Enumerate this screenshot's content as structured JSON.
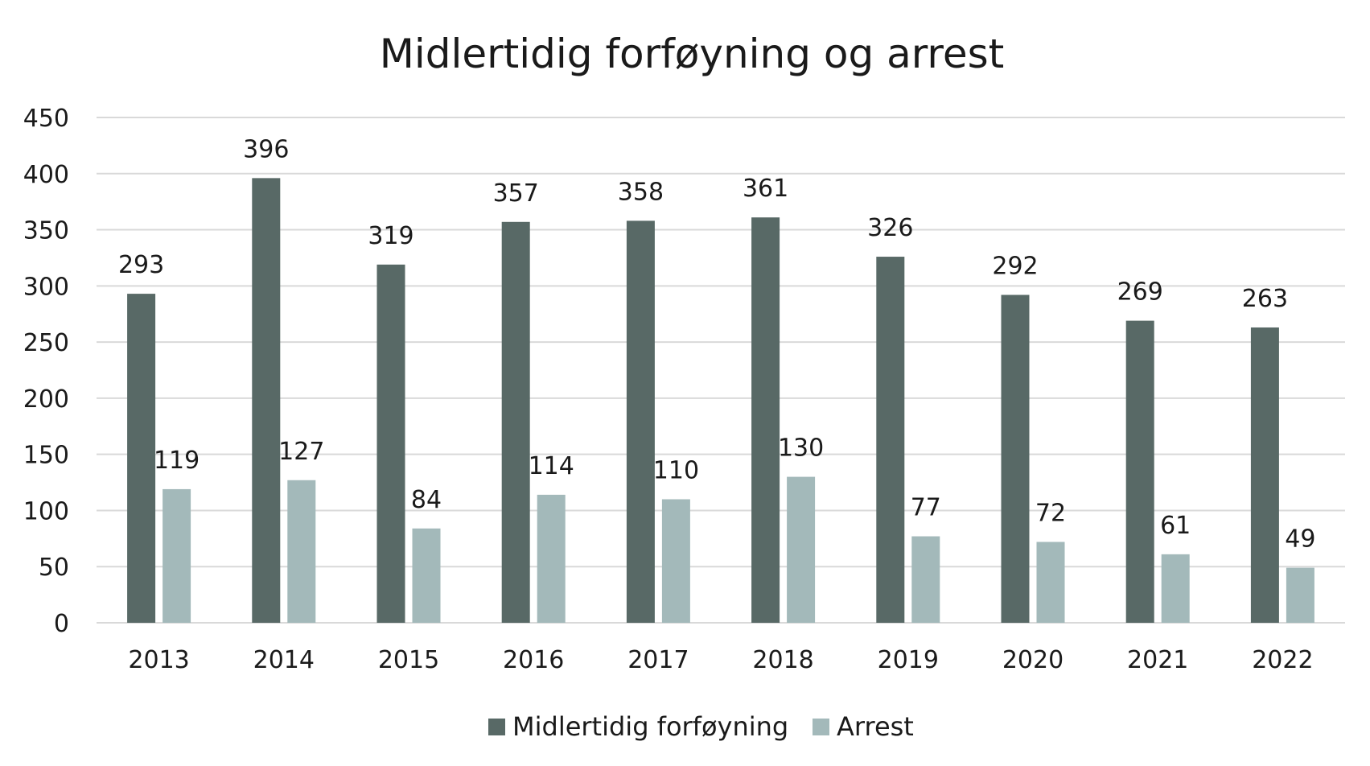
{
  "chart_data": {
    "type": "bar",
    "title": "Midlertidig forføyning og arrest",
    "xlabel": "",
    "ylabel": "",
    "categories": [
      "2013",
      "2014",
      "2015",
      "2016",
      "2017",
      "2018",
      "2019",
      "2020",
      "2021",
      "2022"
    ],
    "series": [
      {
        "name": "Midlertidig forføyning",
        "color": "#586966",
        "values": [
          293,
          396,
          319,
          357,
          358,
          361,
          326,
          292,
          269,
          263
        ]
      },
      {
        "name": "Arrest",
        "color": "#a3b9ba",
        "values": [
          119,
          127,
          84,
          114,
          110,
          130,
          77,
          72,
          61,
          49
        ]
      }
    ],
    "ylim": [
      0,
      450
    ],
    "yticks": [
      0,
      50,
      100,
      150,
      200,
      250,
      300,
      350,
      400,
      450
    ],
    "grid": true,
    "data_labels": true,
    "legend": "bottom-center"
  },
  "colors": {
    "gridline": "#d9d9d9",
    "text": "#1a1a1a",
    "background": "#ffffff"
  }
}
